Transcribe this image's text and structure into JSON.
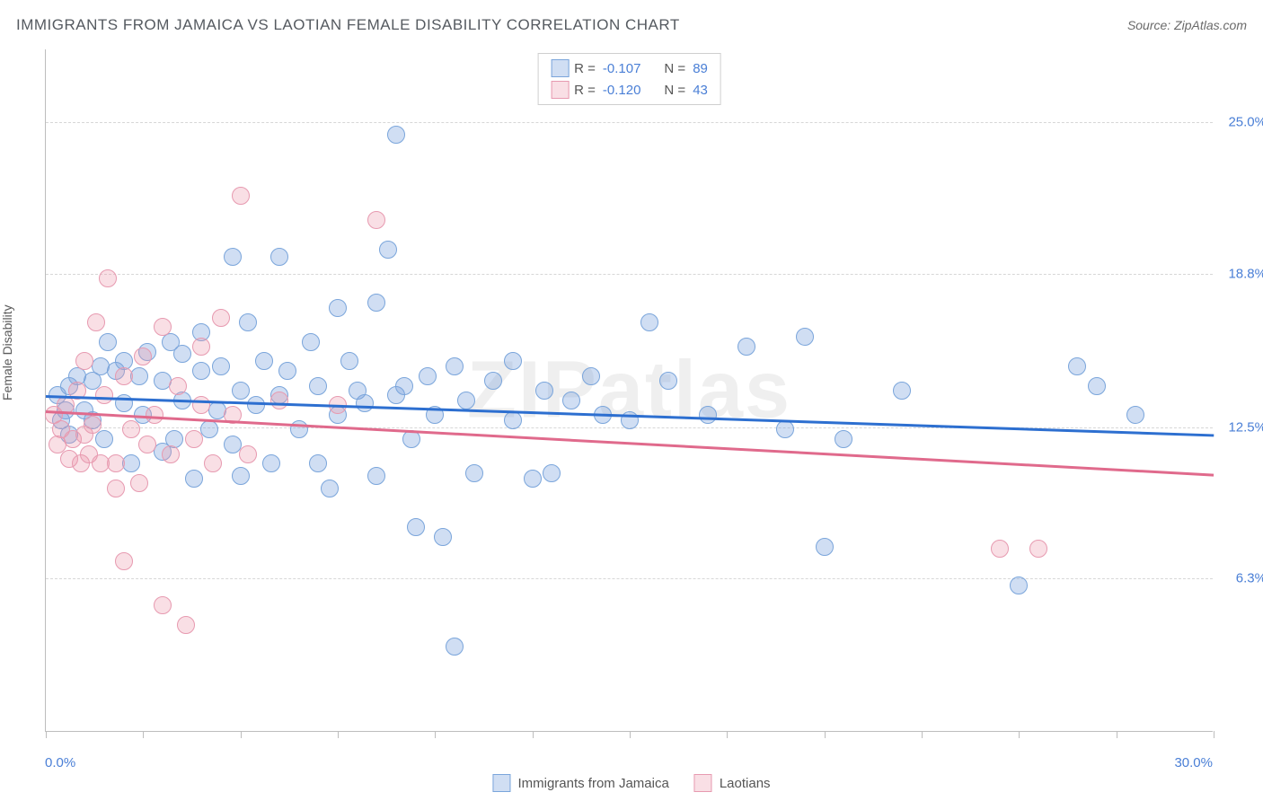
{
  "title": "IMMIGRANTS FROM JAMAICA VS LAOTIAN FEMALE DISABILITY CORRELATION CHART",
  "source": "Source: ZipAtlas.com",
  "watermark": "ZIPatlas",
  "chart": {
    "type": "scatter",
    "xlim": [
      0,
      30
    ],
    "ylim": [
      0,
      28
    ],
    "xaxis_min_label": "0.0%",
    "xaxis_max_label": "30.0%",
    "ylabel": "Female Disability",
    "xticks_pct": [
      0,
      8.3,
      16.7,
      25,
      33.3,
      41.7,
      50,
      58.3,
      66.7,
      75,
      83.3,
      91.7,
      100
    ],
    "ygrid": [
      {
        "value": 6.3,
        "label": "6.3%"
      },
      {
        "value": 12.5,
        "label": "12.5%"
      },
      {
        "value": 18.8,
        "label": "18.8%"
      },
      {
        "value": 25.0,
        "label": "25.0%"
      }
    ],
    "point_radius": 10,
    "background_color": "#ffffff",
    "grid_color": "#d7d7d7",
    "series": [
      {
        "name": "Immigrants from Jamaica",
        "color_fill": "rgba(120,160,220,0.35)",
        "color_stroke": "#7aa5db",
        "line_color": "#2d6fd0",
        "R": "-0.107",
        "N": "89",
        "trend": {
          "x1": 0,
          "y1": 13.8,
          "x2": 30,
          "y2": 12.2
        },
        "points": [
          [
            0.3,
            13.8
          ],
          [
            0.4,
            12.8
          ],
          [
            0.5,
            13.2
          ],
          [
            0.6,
            14.2
          ],
          [
            0.6,
            12.2
          ],
          [
            0.8,
            14.6
          ],
          [
            1.0,
            13.2
          ],
          [
            1.2,
            12.8
          ],
          [
            1.2,
            14.4
          ],
          [
            1.4,
            15.0
          ],
          [
            1.5,
            12.0
          ],
          [
            1.6,
            16.0
          ],
          [
            1.8,
            14.8
          ],
          [
            2.0,
            13.5
          ],
          [
            2.0,
            15.2
          ],
          [
            2.2,
            11.0
          ],
          [
            2.4,
            14.6
          ],
          [
            2.5,
            13.0
          ],
          [
            2.6,
            15.6
          ],
          [
            3.0,
            11.5
          ],
          [
            3.0,
            14.4
          ],
          [
            3.2,
            16.0
          ],
          [
            3.3,
            12.0
          ],
          [
            3.5,
            15.5
          ],
          [
            3.5,
            13.6
          ],
          [
            3.8,
            10.4
          ],
          [
            4.0,
            14.8
          ],
          [
            4.0,
            16.4
          ],
          [
            4.2,
            12.4
          ],
          [
            4.4,
            13.2
          ],
          [
            4.5,
            15.0
          ],
          [
            4.8,
            19.5
          ],
          [
            4.8,
            11.8
          ],
          [
            5.0,
            14.0
          ],
          [
            5.0,
            10.5
          ],
          [
            5.2,
            16.8
          ],
          [
            5.4,
            13.4
          ],
          [
            5.6,
            15.2
          ],
          [
            5.8,
            11.0
          ],
          [
            6.0,
            19.5
          ],
          [
            6.0,
            13.8
          ],
          [
            6.2,
            14.8
          ],
          [
            6.5,
            12.4
          ],
          [
            6.8,
            16.0
          ],
          [
            7.0,
            11.0
          ],
          [
            7.0,
            14.2
          ],
          [
            7.3,
            10.0
          ],
          [
            7.5,
            17.4
          ],
          [
            7.5,
            13.0
          ],
          [
            7.8,
            15.2
          ],
          [
            8.0,
            14.0
          ],
          [
            8.2,
            13.5
          ],
          [
            8.5,
            17.6
          ],
          [
            8.5,
            10.5
          ],
          [
            8.8,
            19.8
          ],
          [
            9.0,
            13.8
          ],
          [
            9.0,
            24.5
          ],
          [
            9.2,
            14.2
          ],
          [
            9.4,
            12.0
          ],
          [
            9.5,
            8.4
          ],
          [
            9.8,
            14.6
          ],
          [
            10.0,
            13.0
          ],
          [
            10.2,
            8.0
          ],
          [
            10.5,
            15.0
          ],
          [
            10.5,
            3.5
          ],
          [
            10.8,
            13.6
          ],
          [
            11.0,
            10.6
          ],
          [
            11.5,
            14.4
          ],
          [
            12.0,
            12.8
          ],
          [
            12.0,
            15.2
          ],
          [
            12.5,
            10.4
          ],
          [
            12.8,
            14.0
          ],
          [
            13.0,
            10.6
          ],
          [
            13.5,
            13.6
          ],
          [
            14.0,
            14.6
          ],
          [
            14.3,
            13.0
          ],
          [
            15.0,
            12.8
          ],
          [
            15.5,
            16.8
          ],
          [
            16.0,
            14.4
          ],
          [
            17.0,
            13.0
          ],
          [
            18.0,
            15.8
          ],
          [
            19.0,
            12.4
          ],
          [
            19.5,
            16.2
          ],
          [
            20.0,
            7.6
          ],
          [
            20.5,
            12.0
          ],
          [
            22.0,
            14.0
          ],
          [
            25.0,
            6.0
          ],
          [
            26.5,
            15.0
          ],
          [
            27.0,
            14.2
          ],
          [
            28.0,
            13.0
          ]
        ]
      },
      {
        "name": "Laotians",
        "color_fill": "rgba(235,150,170,0.30)",
        "color_stroke": "#e79ab0",
        "line_color": "#e06a8c",
        "R": "-0.120",
        "N": "43",
        "trend": {
          "x1": 0,
          "y1": 13.2,
          "x2": 30,
          "y2": 10.6
        },
        "points": [
          [
            0.2,
            13.0
          ],
          [
            0.3,
            11.8
          ],
          [
            0.4,
            12.4
          ],
          [
            0.5,
            13.4
          ],
          [
            0.6,
            11.2
          ],
          [
            0.7,
            12.0
          ],
          [
            0.8,
            14.0
          ],
          [
            0.9,
            11.0
          ],
          [
            1.0,
            12.2
          ],
          [
            1.0,
            15.2
          ],
          [
            1.1,
            11.4
          ],
          [
            1.2,
            12.6
          ],
          [
            1.3,
            16.8
          ],
          [
            1.4,
            11.0
          ],
          [
            1.5,
            13.8
          ],
          [
            1.6,
            18.6
          ],
          [
            1.8,
            11.0
          ],
          [
            1.8,
            10.0
          ],
          [
            2.0,
            14.6
          ],
          [
            2.0,
            7.0
          ],
          [
            2.2,
            12.4
          ],
          [
            2.4,
            10.2
          ],
          [
            2.5,
            15.4
          ],
          [
            2.6,
            11.8
          ],
          [
            2.8,
            13.0
          ],
          [
            3.0,
            16.6
          ],
          [
            3.0,
            5.2
          ],
          [
            3.2,
            11.4
          ],
          [
            3.4,
            14.2
          ],
          [
            3.6,
            4.4
          ],
          [
            3.8,
            12.0
          ],
          [
            4.0,
            13.4
          ],
          [
            4.0,
            15.8
          ],
          [
            4.3,
            11.0
          ],
          [
            4.5,
            17.0
          ],
          [
            4.8,
            13.0
          ],
          [
            5.0,
            22.0
          ],
          [
            5.2,
            11.4
          ],
          [
            6.0,
            13.6
          ],
          [
            7.5,
            13.4
          ],
          [
            8.5,
            21.0
          ],
          [
            24.5,
            7.5
          ],
          [
            25.5,
            7.5
          ]
        ]
      }
    ]
  },
  "legend_top_label_R": "R =",
  "legend_top_label_N": "N =",
  "colors": {
    "axis_label": "#4a7fd6",
    "text": "#555a60"
  }
}
